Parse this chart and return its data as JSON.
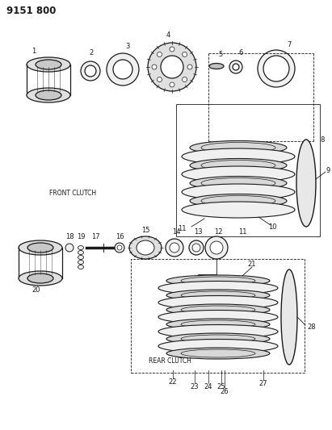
{
  "title": "9151 800",
  "bg_color": "#ffffff",
  "line_color": "#1a1a1a",
  "front_clutch_label": "FRONT CLUTCH",
  "rear_clutch_label": "REAR CLUTCH",
  "figsize": [
    4.11,
    5.33
  ],
  "dpi": 100
}
